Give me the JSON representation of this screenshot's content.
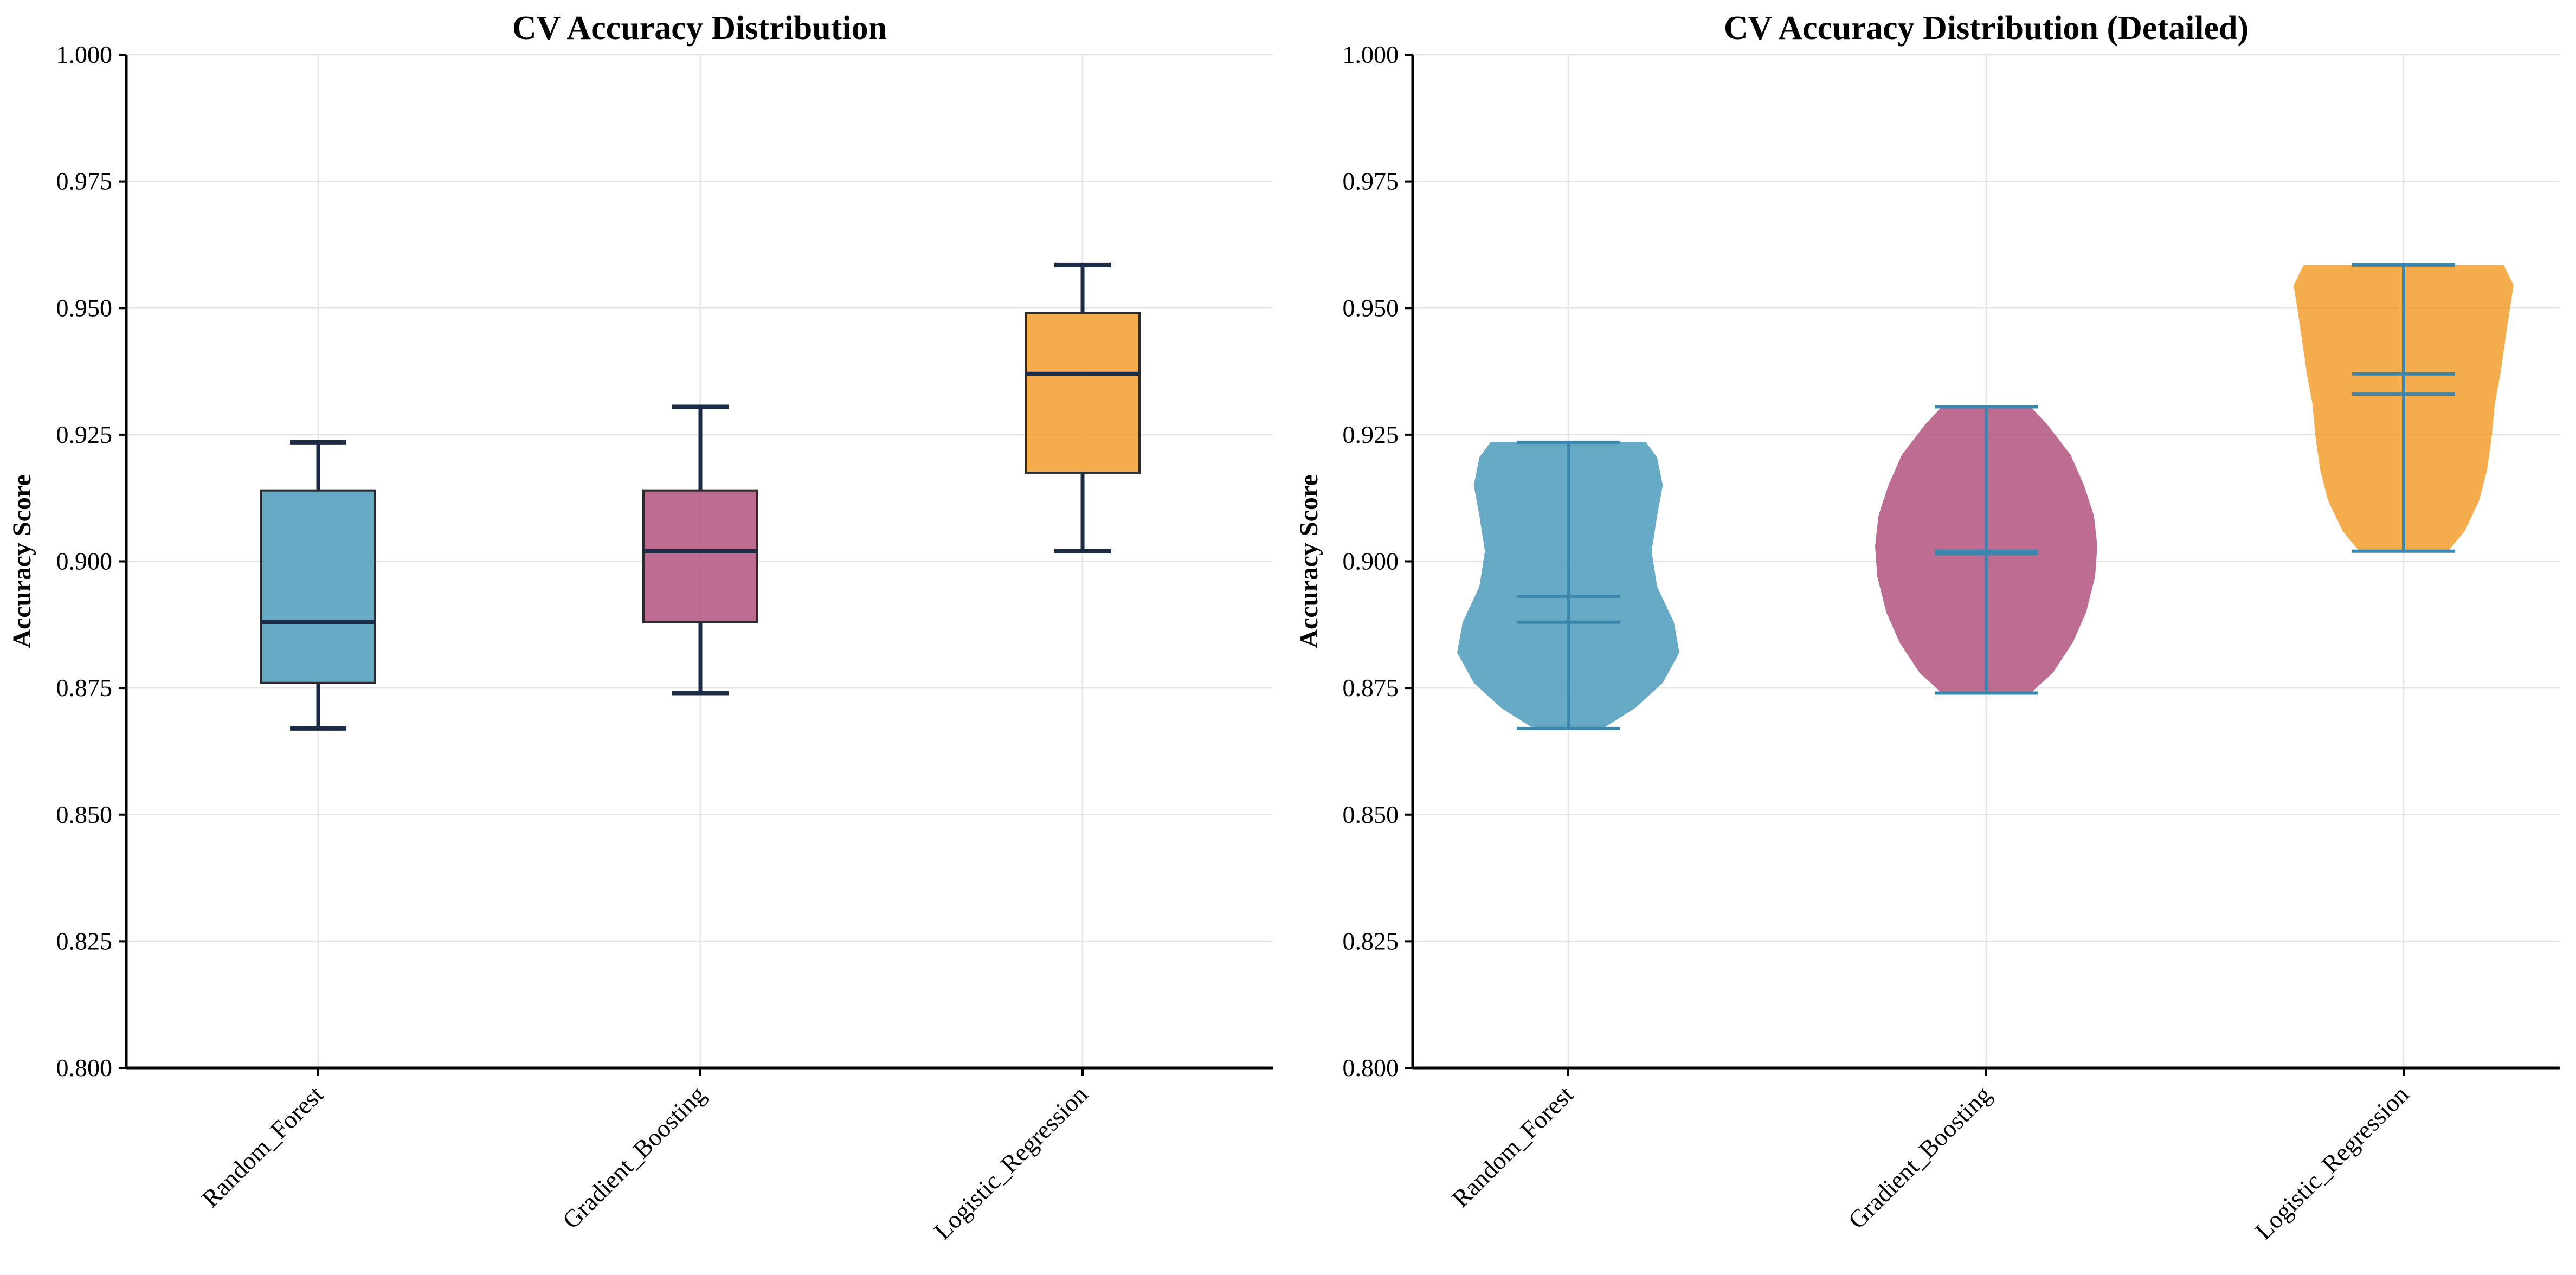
{
  "chart_data": [
    {
      "type": "box",
      "title": "CV Accuracy Distribution",
      "xlabel": "",
      "ylabel": "Accuracy Score",
      "ylim": [
        0.8,
        1.0
      ],
      "yticks": [
        "0.800",
        "0.825",
        "0.850",
        "0.875",
        "0.900",
        "0.925",
        "0.950",
        "0.975",
        "1.000"
      ],
      "grid": true,
      "categories": [
        "Random_Forest",
        "Gradient_Boosting",
        "Logistic_Regression"
      ],
      "series": [
        {
          "category": "Random_Forest",
          "whisker_low": 0.867,
          "q1": 0.876,
          "median": 0.888,
          "q3": 0.914,
          "whisker_high": 0.9235,
          "color": "#4c9bbb"
        },
        {
          "category": "Gradient_Boosting",
          "whisker_low": 0.874,
          "q1": 0.888,
          "median": 0.902,
          "q3": 0.914,
          "whisker_high": 0.9305,
          "color": "#b2527f"
        },
        {
          "category": "Logistic_Regression",
          "whisker_low": 0.902,
          "q1": 0.9175,
          "median": 0.937,
          "q3": 0.949,
          "whisker_high": 0.9585,
          "color": "#f29e2e"
        }
      ]
    },
    {
      "type": "violin",
      "title": "CV Accuracy Distribution (Detailed)",
      "xlabel": "",
      "ylabel": "Accuracy Score",
      "ylim": [
        0.8,
        1.0
      ],
      "yticks": [
        "0.800",
        "0.825",
        "0.850",
        "0.875",
        "0.900",
        "0.925",
        "0.950",
        "0.975",
        "1.000"
      ],
      "grid": true,
      "categories": [
        "Random_Forest",
        "Gradient_Boosting",
        "Logistic_Regression"
      ],
      "series": [
        {
          "category": "Random_Forest",
          "min": 0.867,
          "max": 0.9235,
          "mean": 0.893,
          "median": 0.888,
          "color": "#4c9bbb",
          "profile": [
            [
              0.867,
              0.31
            ],
            [
              0.871,
              0.6
            ],
            [
              0.876,
              0.85
            ],
            [
              0.882,
              1.0
            ],
            [
              0.888,
              0.95
            ],
            [
              0.895,
              0.8
            ],
            [
              0.902,
              0.75
            ],
            [
              0.909,
              0.8
            ],
            [
              0.915,
              0.85
            ],
            [
              0.9205,
              0.8
            ],
            [
              0.9235,
              0.7
            ]
          ]
        },
        {
          "category": "Gradient_Boosting",
          "min": 0.874,
          "max": 0.9305,
          "mean": 0.9015,
          "median": 0.902,
          "color": "#b2527f",
          "profile": [
            [
              0.874,
              0.4
            ],
            [
              0.878,
              0.6
            ],
            [
              0.884,
              0.78
            ],
            [
              0.89,
              0.9
            ],
            [
              0.897,
              0.98
            ],
            [
              0.903,
              1.0
            ],
            [
              0.909,
              0.97
            ],
            [
              0.915,
              0.88
            ],
            [
              0.921,
              0.76
            ],
            [
              0.927,
              0.55
            ],
            [
              0.9305,
              0.4
            ]
          ]
        },
        {
          "category": "Logistic_Regression",
          "min": 0.902,
          "max": 0.9585,
          "mean": 0.933,
          "median": 0.937,
          "color": "#f29e2e",
          "profile": [
            [
              0.902,
              0.4
            ],
            [
              0.906,
              0.55
            ],
            [
              0.912,
              0.68
            ],
            [
              0.918,
              0.75
            ],
            [
              0.924,
              0.79
            ],
            [
              0.931,
              0.82
            ],
            [
              0.937,
              0.87
            ],
            [
              0.943,
              0.91
            ],
            [
              0.949,
              0.95
            ],
            [
              0.9545,
              0.99
            ],
            [
              0.9585,
              0.9
            ]
          ]
        }
      ]
    }
  ]
}
